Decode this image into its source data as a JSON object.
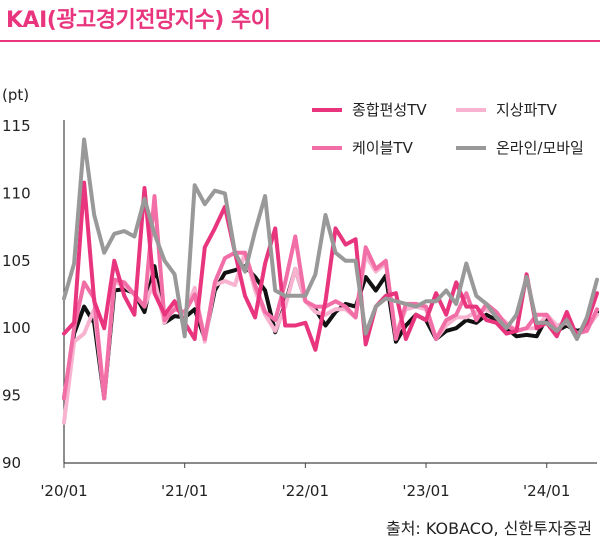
{
  "header": {
    "title": "KAI(광고경기전망지수) 추이"
  },
  "footer": {
    "source": "출처: KOBACO, 신한투자증권"
  },
  "colors": {
    "title": "#e8357e",
    "종합편성TV": "#e8357e",
    "지상파TV": "#f7b3cf",
    "케이블TV": "#f26ea6",
    "온라인/모바일": "#999999",
    "total": "#111111"
  },
  "chart_data": {
    "type": "line",
    "ylabel": "(pt)",
    "ylim": [
      90,
      115
    ],
    "yticks": [
      "90",
      "95",
      "100",
      "105",
      "110",
      "115"
    ],
    "xtick_labels": [
      "'20/01",
      "'21/01",
      "'22/01",
      "'23/01",
      "'24/01"
    ],
    "xtick_index": [
      0,
      12,
      24,
      36,
      48
    ],
    "x": [
      "2020-01",
      "2020-02",
      "2020-03",
      "2020-04",
      "2020-05",
      "2020-06",
      "2020-07",
      "2020-08",
      "2020-09",
      "2020-10",
      "2020-11",
      "2020-12",
      "2021-01",
      "2021-02",
      "2021-03",
      "2021-04",
      "2021-05",
      "2021-06",
      "2021-07",
      "2021-08",
      "2021-09",
      "2021-10",
      "2021-11",
      "2021-12",
      "2022-01",
      "2022-02",
      "2022-03",
      "2022-04",
      "2022-05",
      "2022-06",
      "2022-07",
      "2022-08",
      "2022-09",
      "2022-10",
      "2022-11",
      "2022-12",
      "2023-01",
      "2023-02",
      "2023-03",
      "2023-04",
      "2023-05",
      "2023-06",
      "2023-07",
      "2023-08",
      "2023-09",
      "2023-10",
      "2023-11",
      "2023-12",
      "2024-01",
      "2024-02",
      "2024-03",
      "2024-04",
      "2024-05",
      "2024-06"
    ],
    "series": [
      {
        "name": "",
        "legend": false,
        "color": "#111111",
        "width": 4,
        "values": [
          94.8,
          99.6,
          101.6,
          100.4,
          94.8,
          102.8,
          102.9,
          102.6,
          101.2,
          104.6,
          100.4,
          100.9,
          100.8,
          101.4,
          99.2,
          102.8,
          104.1,
          104.3,
          104.6,
          103.8,
          102.8,
          99.7,
          101.8,
          104.4,
          102.0,
          101.4,
          100.2,
          101.2,
          101.8,
          101.6,
          103.8,
          102.8,
          103.9,
          99.0,
          100.2,
          101.0,
          100.6,
          99.2,
          99.8,
          100.0,
          100.6,
          100.4,
          101.0,
          100.6,
          100.0,
          99.4,
          99.5,
          99.4,
          100.8,
          99.8,
          100.2,
          99.8,
          100.0,
          101.2
        ]
      },
      {
        "name": "지상파TV",
        "legend": true,
        "color": "#f7b3cf",
        "width": 4,
        "values": [
          93.0,
          99.0,
          99.6,
          101.4,
          94.8,
          103.4,
          103.2,
          102.5,
          101.6,
          103.6,
          100.4,
          101.8,
          101.0,
          103.0,
          99.0,
          103.2,
          103.5,
          103.2,
          105.6,
          102.8,
          101.0,
          99.8,
          101.6,
          104.4,
          102.0,
          101.2,
          101.0,
          101.4,
          101.4,
          100.8,
          105.4,
          104.2,
          104.8,
          99.6,
          101.4,
          101.6,
          101.4,
          99.2,
          100.2,
          100.8,
          100.8,
          101.2,
          101.4,
          101.0,
          100.4,
          99.8,
          100.0,
          100.0,
          101.0,
          100.2,
          100.4,
          99.6,
          100.0,
          101.0
        ]
      },
      {
        "name": "케이블TV",
        "legend": true,
        "color": "#f26ea6",
        "width": 4,
        "values": [
          94.8,
          100.0,
          103.4,
          102.2,
          94.8,
          103.6,
          103.4,
          102.5,
          101.6,
          109.8,
          100.6,
          101.4,
          101.2,
          102.5,
          99.2,
          103.4,
          105.2,
          105.6,
          105.6,
          103.2,
          101.2,
          100.6,
          103.4,
          106.8,
          102.0,
          101.6,
          101.6,
          102.0,
          101.6,
          100.8,
          106.0,
          104.4,
          105.0,
          99.2,
          101.8,
          101.8,
          101.6,
          99.2,
          100.6,
          101.0,
          102.6,
          100.6,
          101.8,
          101.2,
          100.2,
          99.8,
          100.0,
          101.0,
          101.0,
          99.8,
          100.6,
          99.6,
          99.8,
          101.4
        ]
      },
      {
        "name": "종합편성TV",
        "legend": true,
        "color": "#e8357e",
        "width": 4,
        "values": [
          99.6,
          100.4,
          110.8,
          102.0,
          100.0,
          105.0,
          102.4,
          101.0,
          110.4,
          102.6,
          101.0,
          102.0,
          100.4,
          99.2,
          106.0,
          107.4,
          109.0,
          105.6,
          102.4,
          100.8,
          104.8,
          107.4,
          100.2,
          100.2,
          100.4,
          98.4,
          102.0,
          107.4,
          106.2,
          106.6,
          98.8,
          101.6,
          102.4,
          102.6,
          99.2,
          101.0,
          100.6,
          102.6,
          101.0,
          103.4,
          101.6,
          101.6,
          100.6,
          100.4,
          99.6,
          99.8,
          104.0,
          100.0,
          100.4,
          99.4,
          101.2,
          99.4,
          100.4,
          102.6
        ]
      },
      {
        "name": "온라인/모바일",
        "legend": true,
        "color": "#999999",
        "width": 4,
        "values": [
          102.2,
          104.8,
          114.0,
          108.4,
          105.6,
          107.0,
          107.2,
          106.8,
          109.6,
          107.0,
          105.0,
          104.0,
          99.4,
          110.6,
          109.2,
          110.2,
          110.0,
          105.6,
          104.2,
          107.2,
          109.8,
          102.8,
          102.4,
          102.4,
          102.4,
          104.0,
          108.4,
          105.6,
          105.0,
          105.0,
          99.6,
          101.6,
          102.2,
          102.0,
          101.8,
          101.6,
          102.0,
          102.0,
          102.8,
          101.8,
          104.8,
          102.4,
          101.8,
          100.8,
          100.0,
          101.0,
          103.8,
          100.4,
          100.4,
          99.8,
          100.6,
          99.2,
          100.8,
          103.6
        ]
      }
    ]
  }
}
